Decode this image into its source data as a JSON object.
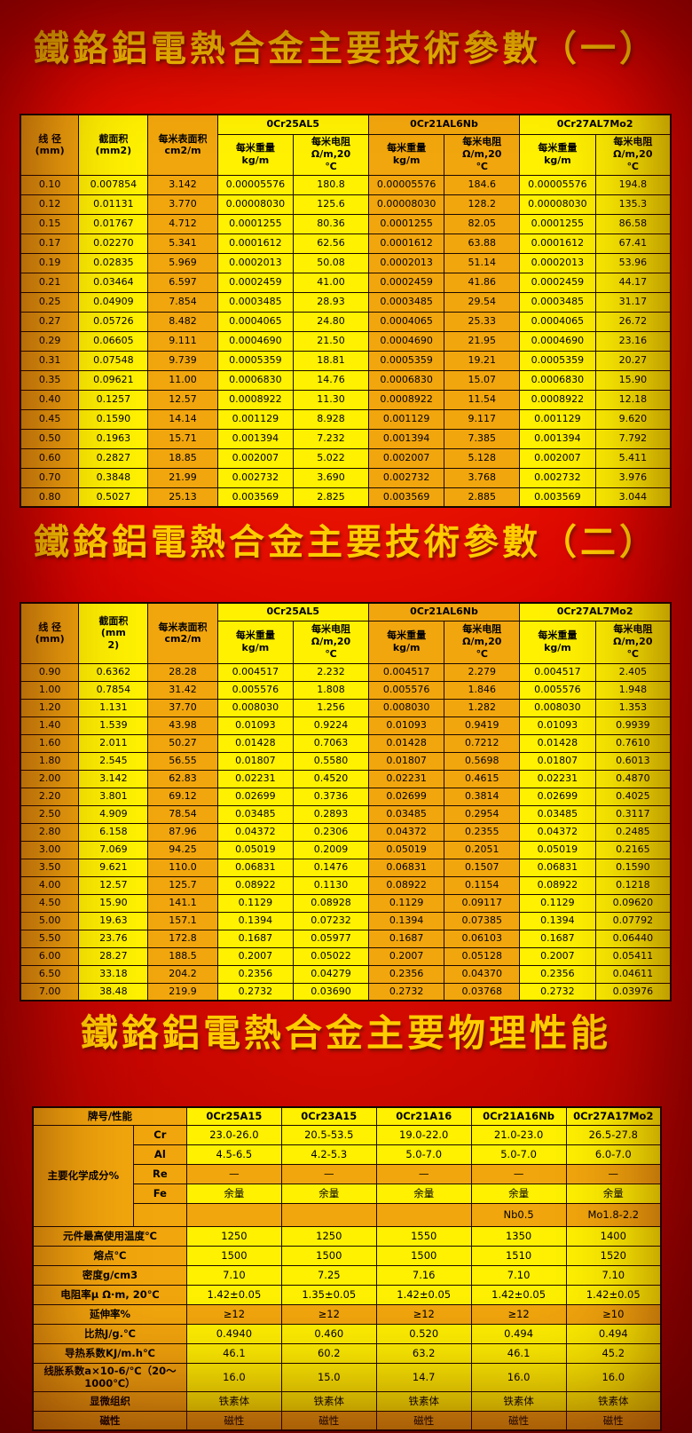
{
  "colors": {
    "orange": "#f2a60d",
    "yellow": "#fff100",
    "gold": "#ffcc00",
    "background_red": "#d30000",
    "border": "#1a0a00"
  },
  "section1": {
    "title": "鐵鉻鋁電熱合金主要技術參數（一）"
  },
  "section2": {
    "title": "鐵鉻鋁電熱合金主要技術參數（二）"
  },
  "section3": {
    "title": "鐵鉻鋁電熱合金主要物理性能"
  },
  "table1": {
    "col_headers": {
      "diameter": "线 径\n(mm)",
      "area": "截面积\n(mm2)",
      "surface": "每米表面积\ncm2/m"
    },
    "alloys": [
      "0Cr25AL5",
      "0Cr21AL6Nb",
      "0Cr27AL7Mo2"
    ],
    "sub_headers": {
      "weight": "每米重量\nkg/m",
      "resistance": "每米电阻\nΩ/m,20\n℃"
    },
    "rows": [
      [
        "0.10",
        "0.007854",
        "3.142",
        "0.00005576",
        "180.8",
        "0.00005576",
        "184.6",
        "0.00005576",
        "194.8"
      ],
      [
        "0.12",
        "0.01131",
        "3.770",
        "0.00008030",
        "125.6",
        "0.00008030",
        "128.2",
        "0.00008030",
        "135.3"
      ],
      [
        "0.15",
        "0.01767",
        "4.712",
        "0.0001255",
        "80.36",
        "0.0001255",
        "82.05",
        "0.0001255",
        "86.58"
      ],
      [
        "0.17",
        "0.02270",
        "5.341",
        "0.0001612",
        "62.56",
        "0.0001612",
        "63.88",
        "0.0001612",
        "67.41"
      ],
      [
        "0.19",
        "0.02835",
        "5.969",
        "0.0002013",
        "50.08",
        "0.0002013",
        "51.14",
        "0.0002013",
        "53.96"
      ],
      [
        "0.21",
        "0.03464",
        "6.597",
        "0.0002459",
        "41.00",
        "0.0002459",
        "41.86",
        "0.0002459",
        "44.17"
      ],
      [
        "0.25",
        "0.04909",
        "7.854",
        "0.0003485",
        "28.93",
        "0.0003485",
        "29.54",
        "0.0003485",
        "31.17"
      ],
      [
        "0.27",
        "0.05726",
        "8.482",
        "0.0004065",
        "24.80",
        "0.0004065",
        "25.33",
        "0.0004065",
        "26.72"
      ],
      [
        "0.29",
        "0.06605",
        "9.111",
        "0.0004690",
        "21.50",
        "0.0004690",
        "21.95",
        "0.0004690",
        "23.16"
      ],
      [
        "0.31",
        "0.07548",
        "9.739",
        "0.0005359",
        "18.81",
        "0.0005359",
        "19.21",
        "0.0005359",
        "20.27"
      ],
      [
        "0.35",
        "0.09621",
        "11.00",
        "0.0006830",
        "14.76",
        "0.0006830",
        "15.07",
        "0.0006830",
        "15.90"
      ],
      [
        "0.40",
        "0.1257",
        "12.57",
        "0.0008922",
        "11.30",
        "0.0008922",
        "11.54",
        "0.0008922",
        "12.18"
      ],
      [
        "0.45",
        "0.1590",
        "14.14",
        "0.001129",
        "8.928",
        "0.001129",
        "9.117",
        "0.001129",
        "9.620"
      ],
      [
        "0.50",
        "0.1963",
        "15.71",
        "0.001394",
        "7.232",
        "0.001394",
        "7.385",
        "0.001394",
        "7.792"
      ],
      [
        "0.60",
        "0.2827",
        "18.85",
        "0.002007",
        "5.022",
        "0.002007",
        "5.128",
        "0.002007",
        "5.411"
      ],
      [
        "0.70",
        "0.3848",
        "21.99",
        "0.002732",
        "3.690",
        "0.002732",
        "3.768",
        "0.002732",
        "3.976"
      ],
      [
        "0.80",
        "0.5027",
        "25.13",
        "0.003569",
        "2.825",
        "0.003569",
        "2.885",
        "0.003569",
        "3.044"
      ]
    ]
  },
  "table2": {
    "col_headers": {
      "diameter": "线 径\n(mm)",
      "area": "截面积\n(mm\n2)",
      "surface": "每米表面积\ncm2/m"
    },
    "alloys": [
      "0Cr25AL5",
      "0Cr21AL6Nb",
      "0Cr27AL7Mo2"
    ],
    "sub_headers": {
      "weight": "每米重量\nkg/m",
      "resistance": "每米电阻\nΩ/m,20\n℃"
    },
    "rows": [
      [
        "0.90",
        "0.6362",
        "28.28",
        "0.004517",
        "2.232",
        "0.004517",
        "2.279",
        "0.004517",
        "2.405"
      ],
      [
        "1.00",
        "0.7854",
        "31.42",
        "0.005576",
        "1.808",
        "0.005576",
        "1.846",
        "0.005576",
        "1.948"
      ],
      [
        "1.20",
        "1.131",
        "37.70",
        "0.008030",
        "1.256",
        "0.008030",
        "1.282",
        "0.008030",
        "1.353"
      ],
      [
        "1.40",
        "1.539",
        "43.98",
        "0.01093",
        "0.9224",
        "0.01093",
        "0.9419",
        "0.01093",
        "0.9939"
      ],
      [
        "1.60",
        "2.011",
        "50.27",
        "0.01428",
        "0.7063",
        "0.01428",
        "0.7212",
        "0.01428",
        "0.7610"
      ],
      [
        "1.80",
        "2.545",
        "56.55",
        "0.01807",
        "0.5580",
        "0.01807",
        "0.5698",
        "0.01807",
        "0.6013"
      ],
      [
        "2.00",
        "3.142",
        "62.83",
        "0.02231",
        "0.4520",
        "0.02231",
        "0.4615",
        "0.02231",
        "0.4870"
      ],
      [
        "2.20",
        "3.801",
        "69.12",
        "0.02699",
        "0.3736",
        "0.02699",
        "0.3814",
        "0.02699",
        "0.4025"
      ],
      [
        "2.50",
        "4.909",
        "78.54",
        "0.03485",
        "0.2893",
        "0.03485",
        "0.2954",
        "0.03485",
        "0.3117"
      ],
      [
        "2.80",
        "6.158",
        "87.96",
        "0.04372",
        "0.2306",
        "0.04372",
        "0.2355",
        "0.04372",
        "0.2485"
      ],
      [
        "3.00",
        "7.069",
        "94.25",
        "0.05019",
        "0.2009",
        "0.05019",
        "0.2051",
        "0.05019",
        "0.2165"
      ],
      [
        "3.50",
        "9.621",
        "110.0",
        "0.06831",
        "0.1476",
        "0.06831",
        "0.1507",
        "0.06831",
        "0.1590"
      ],
      [
        "4.00",
        "12.57",
        "125.7",
        "0.08922",
        "0.1130",
        "0.08922",
        "0.1154",
        "0.08922",
        "0.1218"
      ],
      [
        "4.50",
        "15.90",
        "141.1",
        "0.1129",
        "0.08928",
        "0.1129",
        "0.09117",
        "0.1129",
        "0.09620"
      ],
      [
        "5.00",
        "19.63",
        "157.1",
        "0.1394",
        "0.07232",
        "0.1394",
        "0.07385",
        "0.1394",
        "0.07792"
      ],
      [
        "5.50",
        "23.76",
        "172.8",
        "0.1687",
        "0.05977",
        "0.1687",
        "0.06103",
        "0.1687",
        "0.06440"
      ],
      [
        "6.00",
        "28.27",
        "188.5",
        "0.2007",
        "0.05022",
        "0.2007",
        "0.05128",
        "0.2007",
        "0.05411"
      ],
      [
        "6.50",
        "33.18",
        "204.2",
        "0.2356",
        "0.04279",
        "0.2356",
        "0.04370",
        "0.2356",
        "0.04611"
      ],
      [
        "7.00",
        "38.48",
        "219.9",
        "0.2732",
        "0.03690",
        "0.2732",
        "0.03768",
        "0.2732",
        "0.03976"
      ]
    ]
  },
  "table3": {
    "header": {
      "label": "牌号/性能",
      "alloys": [
        "0Cr25A15",
        "0Cr23A15",
        "0Cr21A16",
        "0Cr21A16Nb",
        "0Cr27A17Mo2"
      ]
    },
    "group_label": "主要化学成分%",
    "rows": [
      {
        "kind": "chem",
        "sub": "Cr",
        "shade": "y",
        "values": [
          "23.0-26.0",
          "20.5-53.5",
          "19.0-22.0",
          "21.0-23.0",
          "26.5-27.8"
        ]
      },
      {
        "kind": "chem",
        "sub": "Al",
        "shade": "y",
        "values": [
          "4.5-6.5",
          "4.2-5.3",
          "5.0-7.0",
          "5.0-7.0",
          "6.0-7.0"
        ]
      },
      {
        "kind": "chem",
        "sub": "Re",
        "shade": "o",
        "values": [
          "—",
          "—",
          "—",
          "—",
          "—"
        ]
      },
      {
        "kind": "chem",
        "sub": "Fe",
        "shade": "y",
        "values": [
          "余量",
          "余量",
          "余量",
          "余量",
          "余量"
        ]
      },
      {
        "kind": "chem",
        "sub": "",
        "shade": "o",
        "extra": true,
        "values": [
          "",
          "",
          "",
          "Nb0.5",
          "Mo1.8-2.2"
        ]
      },
      {
        "kind": "full",
        "label": "元件最高使用温度℃",
        "shade": "y",
        "values": [
          "1250",
          "1250",
          "1550",
          "1350",
          "1400"
        ]
      },
      {
        "kind": "full",
        "label": "熔点℃",
        "shade": "y",
        "values": [
          "1500",
          "1500",
          "1500",
          "1510",
          "1520"
        ]
      },
      {
        "kind": "full",
        "label": "密度g/cm3",
        "shade": "y",
        "values": [
          "7.10",
          "7.25",
          "7.16",
          "7.10",
          "7.10"
        ]
      },
      {
        "kind": "full",
        "label": "电阻率μ Ω·m, 20℃",
        "shade": "y",
        "values": [
          "1.42±0.05",
          "1.35±0.05",
          "1.42±0.05",
          "1.42±0.05",
          "1.42±0.05"
        ]
      },
      {
        "kind": "full",
        "label": "延伸率%",
        "shade": "o",
        "values": [
          "≥12",
          "≥12",
          "≥12",
          "≥12",
          "≥10"
        ]
      },
      {
        "kind": "full",
        "label": "比热J/g.℃",
        "shade": "y",
        "values": [
          "0.4940",
          "0.460",
          "0.520",
          "0.494",
          "0.494"
        ]
      },
      {
        "kind": "full",
        "label": "导热系数KJ/m.h℃",
        "shade": "y",
        "values": [
          "46.1",
          "60.2",
          "63.2",
          "46.1",
          "45.2"
        ]
      },
      {
        "kind": "full",
        "label": "线胀系数a×10-6/℃（20～\n1000℃）",
        "shade": "y",
        "tall": true,
        "values": [
          "16.0",
          "15.0",
          "14.7",
          "16.0",
          "16.0"
        ]
      },
      {
        "kind": "full",
        "label": "显微组织",
        "shade": "y",
        "values": [
          "铁素体",
          "铁素体",
          "铁素体",
          "铁素体",
          "铁素体"
        ]
      },
      {
        "kind": "full",
        "label": "磁性",
        "shade": "o",
        "values": [
          "磁性",
          "磁性",
          "磁性",
          "磁性",
          "磁性"
        ]
      }
    ]
  }
}
